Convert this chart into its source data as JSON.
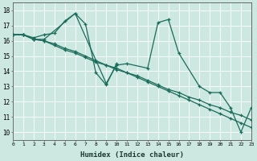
{
  "title": "",
  "xlabel": "Humidex (Indice chaleur)",
  "xlim": [
    0,
    23
  ],
  "ylim": [
    9.5,
    18.5
  ],
  "xticks": [
    0,
    1,
    2,
    3,
    4,
    5,
    6,
    7,
    8,
    9,
    10,
    11,
    12,
    13,
    14,
    15,
    16,
    17,
    18,
    19,
    20,
    21,
    22,
    23
  ],
  "yticks": [
    10,
    11,
    12,
    13,
    14,
    15,
    16,
    17,
    18
  ],
  "bg_color": "#cce8e0",
  "line_color": "#1a6b5a",
  "grid_color": "#ffffff",
  "figsize": [
    3.2,
    2.0
  ],
  "dpi": 100,
  "lines": [
    {
      "x": [
        0,
        1,
        2,
        3,
        4,
        5,
        6,
        7,
        8,
        9,
        10
      ],
      "y": [
        16.4,
        16.4,
        16.2,
        16.4,
        16.5,
        17.3,
        17.8,
        17.1,
        13.9,
        13.1,
        14.5
      ]
    },
    {
      "x": [
        0,
        1,
        2,
        3,
        6,
        9,
        10,
        11,
        13,
        14,
        15,
        16,
        18,
        19,
        20,
        21,
        22,
        23
      ],
      "y": [
        16.4,
        16.4,
        16.1,
        16.1,
        17.8,
        13.2,
        14.4,
        14.5,
        14.2,
        17.2,
        17.4,
        15.2,
        13.0,
        12.6,
        12.6,
        11.6,
        10.0,
        11.6
      ]
    },
    {
      "x": [
        0,
        1,
        2,
        3,
        4,
        5,
        6,
        7,
        8,
        9,
        10,
        11,
        12,
        13,
        14,
        15,
        16,
        17,
        18,
        19,
        20,
        21,
        22,
        23
      ],
      "y": [
        16.4,
        16.4,
        16.1,
        16.0,
        15.8,
        15.5,
        15.3,
        15.0,
        14.7,
        14.4,
        14.1,
        13.9,
        13.6,
        13.3,
        13.0,
        12.7,
        12.4,
        12.1,
        11.8,
        11.5,
        11.2,
        10.9,
        10.6,
        10.3
      ]
    },
    {
      "x": [
        0,
        1,
        2,
        3,
        4,
        5,
        6,
        7,
        8,
        9,
        10,
        11,
        12,
        13,
        14,
        15,
        16,
        17,
        18,
        19,
        20,
        21,
        22,
        23
      ],
      "y": [
        16.4,
        16.4,
        16.1,
        16.0,
        15.7,
        15.4,
        15.2,
        14.9,
        14.6,
        14.4,
        14.2,
        13.9,
        13.7,
        13.4,
        13.1,
        12.8,
        12.6,
        12.3,
        12.1,
        11.8,
        11.6,
        11.3,
        11.1,
        10.8
      ]
    }
  ]
}
